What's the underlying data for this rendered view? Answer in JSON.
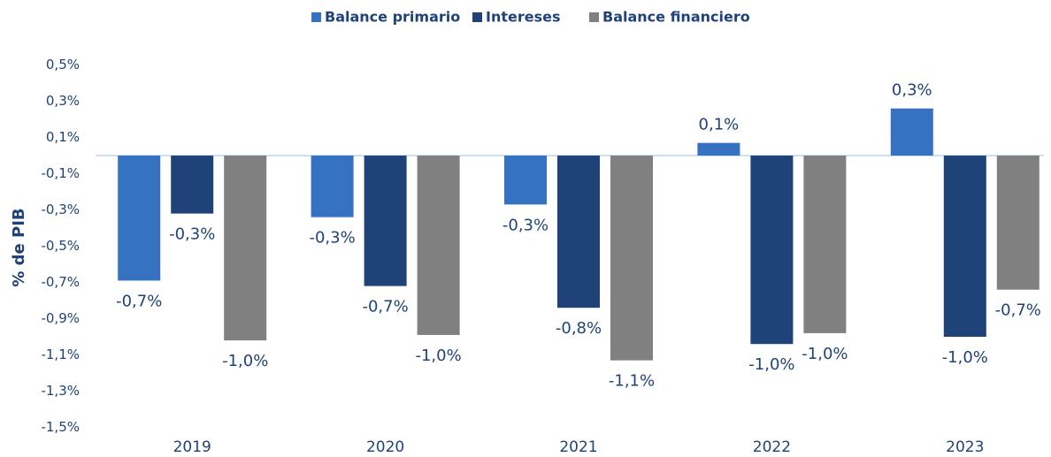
{
  "chart_data": {
    "type": "bar",
    "y_label": "% de PIB",
    "categories": [
      "2019",
      "2020",
      "2021",
      "2022",
      "2023"
    ],
    "series": [
      {
        "name": "Balance primario",
        "color": "#3672c2",
        "values": [
          -0.69,
          -0.34,
          -0.27,
          0.07,
          0.26
        ],
        "value_labels": [
          "-0,7%",
          "-0,3%",
          "-0,3%",
          "0,1%",
          "0,3%"
        ]
      },
      {
        "name": "Intereses",
        "color": "#1f4279",
        "values": [
          -0.32,
          -0.72,
          -0.84,
          -1.04,
          -1.0
        ],
        "value_labels": [
          "-0,3%",
          "-0,7%",
          "-0,8%",
          "-1,0%",
          "-1,0%"
        ]
      },
      {
        "name": "Balance financiero",
        "color": "#808080",
        "values": [
          -1.02,
          -0.99,
          -1.13,
          -0.98,
          -0.74
        ],
        "value_labels": [
          "-1,0%",
          "-1,0%",
          "-1,1%",
          "-1,0%",
          "-0,7%"
        ]
      }
    ],
    "ylim": [
      -1.5,
      0.5
    ],
    "yticks": [
      {
        "value": 0.5,
        "label": "0,5%"
      },
      {
        "value": 0.3,
        "label": "0,3%"
      },
      {
        "value": 0.1,
        "label": "0,1%"
      },
      {
        "value": -0.1,
        "label": "-0,1%"
      },
      {
        "value": -0.3,
        "label": "-0,3%"
      },
      {
        "value": -0.5,
        "label": "-0,5%"
      },
      {
        "value": -0.7,
        "label": "-0,7%"
      },
      {
        "value": -0.9,
        "label": "-0,9%"
      },
      {
        "value": -1.1,
        "label": "-1,1%"
      },
      {
        "value": -1.3,
        "label": "-1,3%"
      },
      {
        "value": -1.5,
        "label": "-1,5%"
      }
    ],
    "grid": false,
    "legend": "top"
  }
}
